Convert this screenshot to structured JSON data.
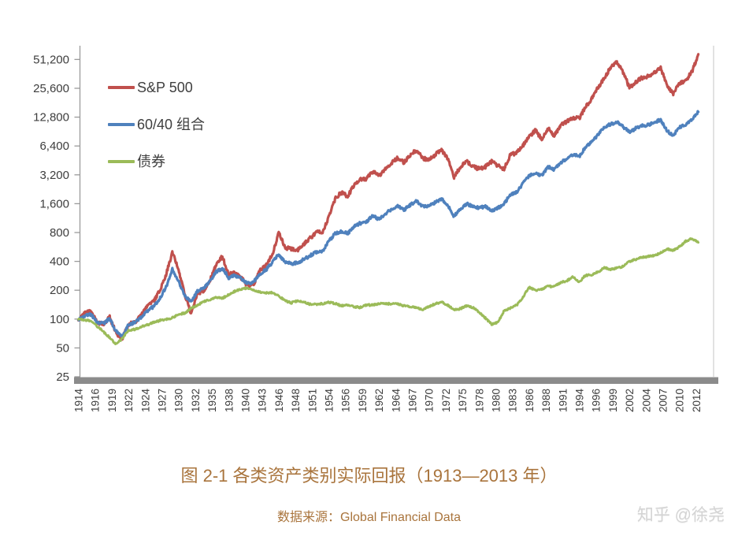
{
  "caption": {
    "title": "图 2-1 各类资产类别实际回报（1913—2013 年）",
    "source_label": "数据来源：",
    "source_value": "Global Financial Data"
  },
  "watermark": {
    "text": "知乎 @徐尧"
  },
  "legend": [
    {
      "label": "S&P 500",
      "color": "#C0504D"
    },
    {
      "label": "60/40 组合",
      "color": "#4F81BD"
    },
    {
      "label": "债券",
      "color": "#9BBB59"
    }
  ],
  "chart_data": {
    "type": "line",
    "title": "图 2-1 各类资产类别实际回报（1913—2013 年）",
    "xlabel": "",
    "ylabel": "",
    "y_scale": "log2",
    "ylim": [
      25,
      51200
    ],
    "grid": false,
    "legend_position": "upper-left-inside",
    "x_start_year": 1914,
    "x_end_year": 2013,
    "y_tick_values": [
      51200,
      25600,
      12800,
      6400,
      3200,
      1600,
      800,
      400,
      200,
      100,
      50,
      25
    ],
    "y_tick_labels": [
      "51,200",
      "25,600",
      "12,800",
      "6,400",
      "3,200",
      "1,600",
      "800",
      "400",
      "200",
      "100",
      "50",
      "25"
    ],
    "x_tick_labels": [
      "1914",
      "1916",
      "1919",
      "1922",
      "1924",
      "1927",
      "1930",
      "1932",
      "1935",
      "1938",
      "1940",
      "1943",
      "1946",
      "1948",
      "1951",
      "1954",
      "1956",
      "1959",
      "1962",
      "1964",
      "1967",
      "1970",
      "1972",
      "1975",
      "1978",
      "1980",
      "1983",
      "1986",
      "1988",
      "1991",
      "1994",
      "1996",
      "1999",
      "2002",
      "2004",
      "2007",
      "2010",
      "2012"
    ],
    "x_tick_interval_months": 32,
    "axis_color": "#9a9a9a",
    "baseline_bar_color": "#8b8b8b",
    "right_border_color": "#c6c6c6",
    "tick_label_color": "#3d3d3d",
    "series": [
      {
        "name": "S&P 500",
        "color": "#C0504D",
        "width": 3.2,
        "jitter": 0.045,
        "values": [
          97,
          115,
          122,
          92,
          88,
          105,
          72,
          62,
          88,
          93,
          108,
          135,
          152,
          200,
          290,
          500,
          330,
          180,
          115,
          185,
          195,
          255,
          370,
          450,
          290,
          310,
          270,
          225,
          235,
          320,
          370,
          470,
          800,
          560,
          540,
          520,
          600,
          700,
          800,
          810,
          1150,
          1800,
          2100,
          1900,
          2500,
          2900,
          2900,
          3500,
          3100,
          3700,
          4300,
          4800,
          4300,
          5200,
          5800,
          4800,
          4600,
          5200,
          5800,
          4700,
          3000,
          3900,
          4400,
          3900,
          3700,
          3900,
          4400,
          4000,
          3700,
          5200,
          5400,
          6500,
          8000,
          9300,
          7600,
          9800,
          8200,
          10500,
          11500,
          12500,
          12500,
          16500,
          20000,
          26000,
          33000,
          42000,
          48000,
          38000,
          26000,
          30000,
          33000,
          34000,
          38000,
          42000,
          27000,
          22500,
          29000,
          31000,
          38000,
          58000
        ]
      },
      {
        "name": "60/40 组合",
        "color": "#4F81BD",
        "width": 3.2,
        "jitter": 0.035,
        "values": [
          98,
          108,
          112,
          92,
          90,
          102,
          75,
          65,
          88,
          92,
          103,
          122,
          135,
          165,
          215,
          330,
          250,
          175,
          150,
          195,
          210,
          250,
          310,
          340,
          270,
          285,
          265,
          235,
          245,
          295,
          330,
          390,
          480,
          390,
          380,
          385,
          420,
          460,
          500,
          510,
          650,
          780,
          820,
          780,
          920,
          1000,
          1030,
          1200,
          1100,
          1250,
          1400,
          1500,
          1380,
          1550,
          1700,
          1500,
          1500,
          1650,
          1800,
          1550,
          1180,
          1400,
          1600,
          1500,
          1450,
          1500,
          1350,
          1450,
          1600,
          2000,
          2100,
          2600,
          3100,
          3400,
          3100,
          3900,
          3600,
          4300,
          4700,
          5200,
          5000,
          6200,
          7000,
          8500,
          10000,
          10800,
          11400,
          10200,
          8900,
          9800,
          10400,
          10600,
          11300,
          12000,
          9200,
          8300,
          10000,
          10800,
          12000,
          14500
        ]
      },
      {
        "name": "债券",
        "color": "#9BBB59",
        "width": 2.9,
        "jitter": 0.022,
        "values": [
          99,
          98,
          96,
          84,
          74,
          64,
          54,
          63,
          76,
          78,
          83,
          87,
          92,
          97,
          99,
          103,
          112,
          115,
          130,
          140,
          152,
          160,
          168,
          165,
          180,
          195,
          205,
          212,
          200,
          192,
          188,
          190,
          175,
          155,
          148,
          155,
          152,
          143,
          143,
          145,
          150,
          145,
          138,
          140,
          135,
          132,
          140,
          141,
          145,
          144,
          145,
          143,
          138,
          134,
          132,
          125,
          135,
          145,
          150,
          140,
          125,
          128,
          137,
          132,
          118,
          103,
          88,
          92,
          122,
          130,
          140,
          170,
          215,
          200,
          205,
          220,
          218,
          240,
          250,
          275,
          245,
          285,
          290,
          310,
          345,
          330,
          340,
          355,
          400,
          420,
          440,
          450,
          460,
          490,
          540,
          520,
          570,
          650,
          690,
          630
        ]
      }
    ]
  }
}
